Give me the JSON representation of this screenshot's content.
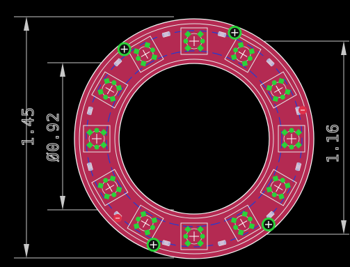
{
  "dimensions": {
    "outer_diameter": "1.45",
    "inner_diameter": "Ø0.92",
    "height": "1.16"
  },
  "board": {
    "led_count": 12,
    "mount_hole_count": 4,
    "colors": {
      "background": "#000000",
      "board_fill": "#b42a52",
      "board_edge": "#f0f0f0",
      "pad": "#2bd23a",
      "trace": "#1f3cd6",
      "silkscreen": "#e8e8e8",
      "dimension": "#c8c8c8",
      "hole_ring": "#2bd23a"
    }
  }
}
